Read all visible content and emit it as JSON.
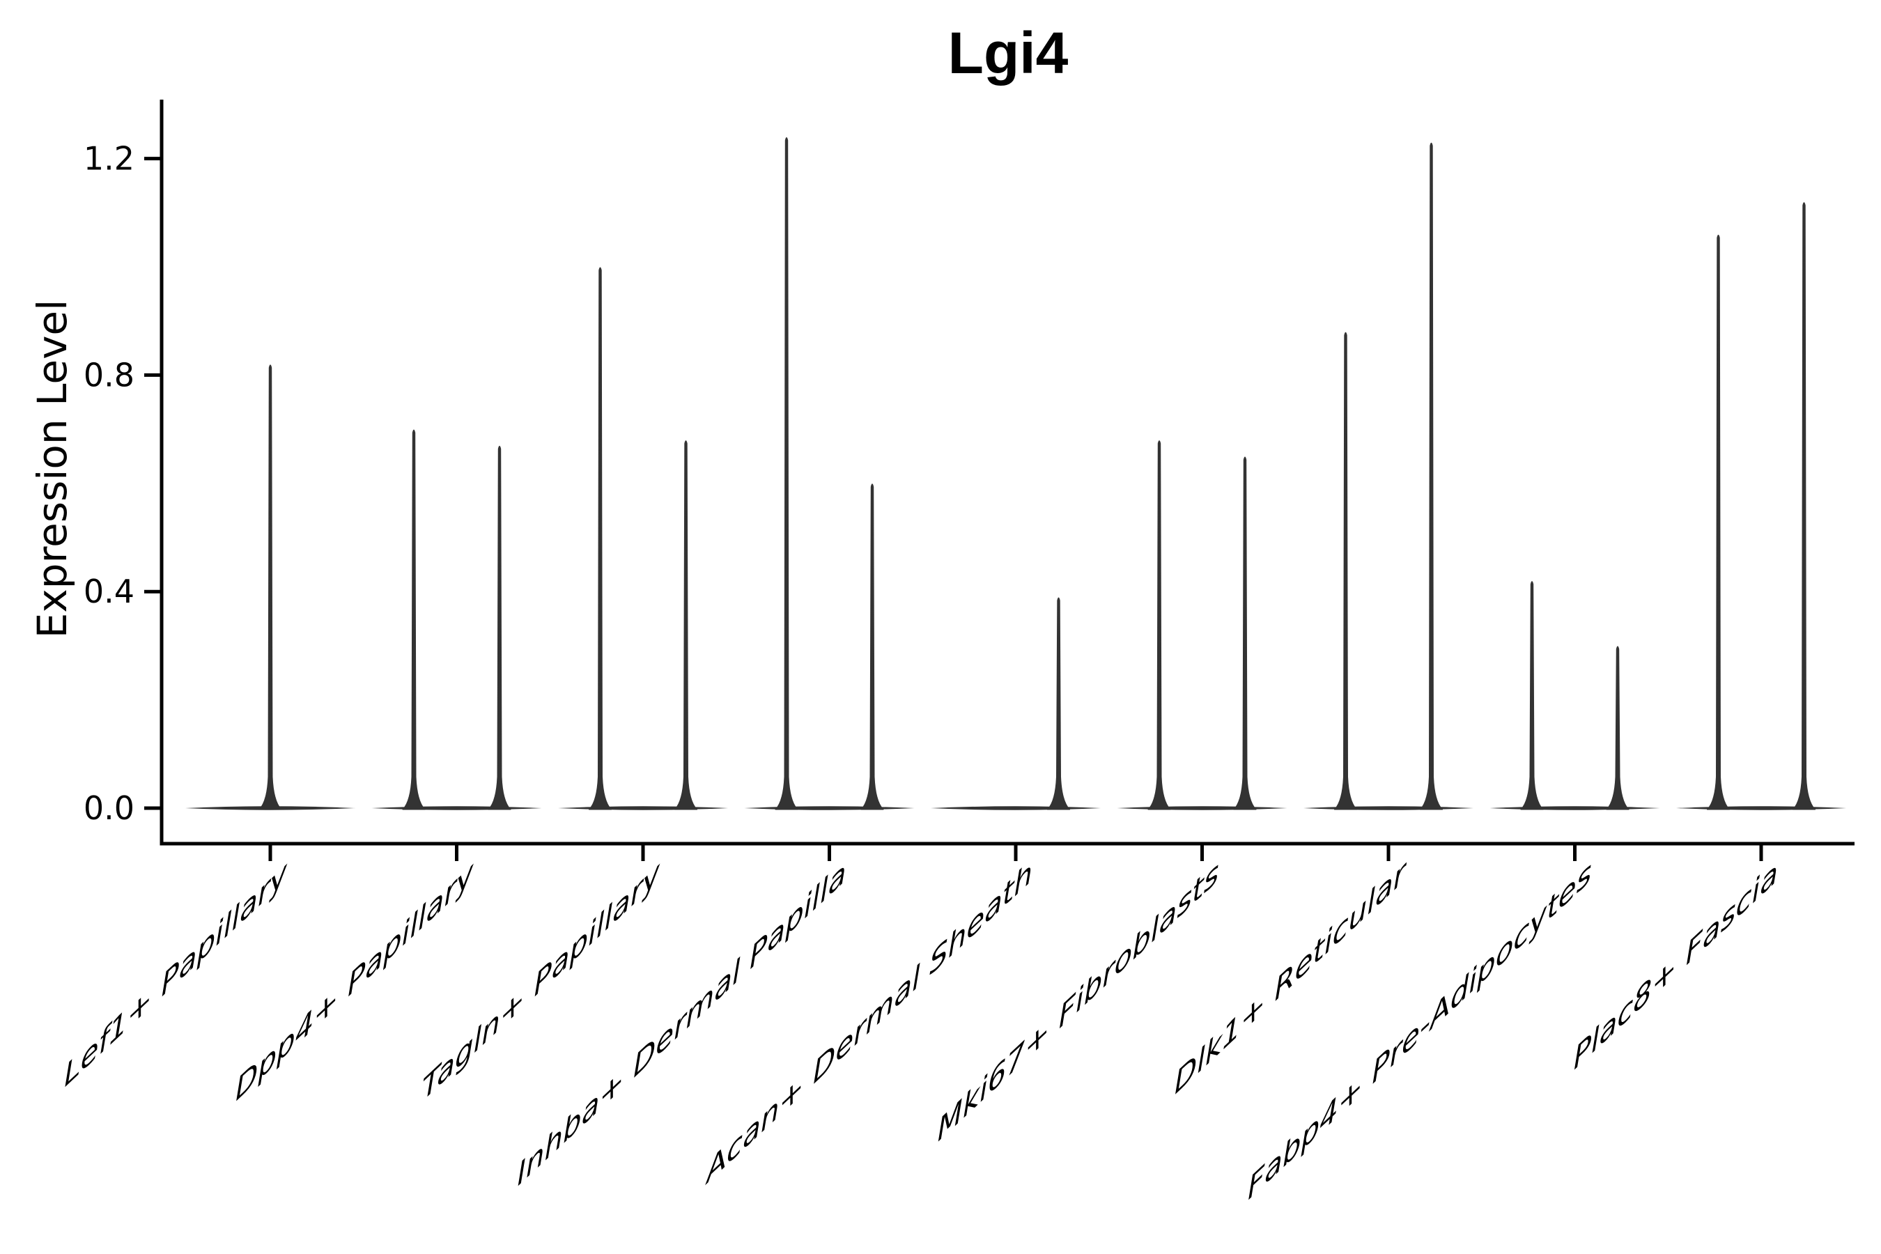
{
  "title": "Lgi4",
  "y_axis_label": "Expression Level",
  "chart_data": {
    "type": "violin",
    "title": "Lgi4",
    "xlabel": "",
    "ylabel": "Expression Level",
    "ylim": [
      -0.06,
      1.31
    ],
    "yticks": [
      0.0,
      0.4,
      0.8,
      1.2
    ],
    "ytick_labels": [
      "0.0",
      "0.4",
      "0.8",
      "1.2"
    ],
    "grid": false,
    "legend": "none",
    "violin_color": "#333333",
    "axis_color": "#000000",
    "categories": [
      "Lef1+ Papillary",
      "Dpp4+ Papillary",
      "Tagln+ Papillary",
      "Inhba+ Dermal Papilla",
      "Acan+ Dermal Sheath",
      "Mki67+ Fibroblasts",
      "Dlk1+ Reticular",
      "Fabp4+ Pre-Adipocytes",
      "Plac8+ Fascia"
    ],
    "series": [
      {
        "category": "Lef1+ Papillary",
        "violins": [
          {
            "offset": 0,
            "peak": 0.82
          }
        ]
      },
      {
        "category": "Dpp4+ Papillary",
        "violins": [
          {
            "offset": -1,
            "peak": 0.7
          },
          {
            "offset": 1,
            "peak": 0.67
          }
        ]
      },
      {
        "category": "Tagln+ Papillary",
        "violins": [
          {
            "offset": -1,
            "peak": 1.0
          },
          {
            "offset": 1,
            "peak": 0.68
          }
        ]
      },
      {
        "category": "Inhba+ Dermal Papilla",
        "violins": [
          {
            "offset": -1,
            "peak": 1.24
          },
          {
            "offset": 1,
            "peak": 0.6
          }
        ]
      },
      {
        "category": "Acan+ Dermal Sheath",
        "violins": [
          {
            "offset": 1,
            "peak": 0.39
          }
        ]
      },
      {
        "category": "Mki67+ Fibroblasts",
        "violins": [
          {
            "offset": -1,
            "peak": 0.68
          },
          {
            "offset": 1,
            "peak": 0.65
          }
        ]
      },
      {
        "category": "Dlk1+ Reticular",
        "violins": [
          {
            "offset": -1,
            "peak": 0.88
          },
          {
            "offset": 1,
            "peak": 1.23
          }
        ]
      },
      {
        "category": "Fabp4+ Pre-Adipocytes",
        "violins": [
          {
            "offset": -1,
            "peak": 0.42
          },
          {
            "offset": 1,
            "peak": 0.3
          }
        ]
      },
      {
        "category": "Plac8+ Fascia",
        "violins": [
          {
            "offset": -1,
            "peak": 1.06
          },
          {
            "offset": 1,
            "peak": 1.12
          }
        ]
      }
    ],
    "note_all_violins_have_flat_zero_base": true
  }
}
